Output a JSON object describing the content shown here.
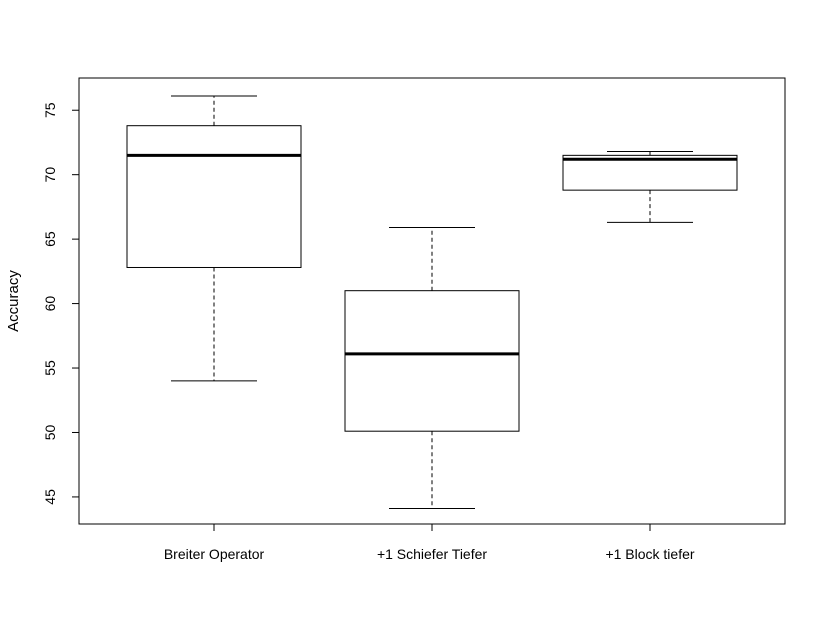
{
  "chart_data": {
    "type": "boxplot",
    "title": "",
    "xlabel": "",
    "ylabel": "Accuracy",
    "ylim": [
      42.9,
      77.5
    ],
    "yticks": [
      45,
      50,
      55,
      60,
      65,
      70,
      75
    ],
    "grid": false,
    "categories": [
      "Breiter Operator",
      "+1 Schiefer Tiefer",
      "+1 Block tiefer"
    ],
    "boxes": [
      {
        "min": 54.0,
        "q1": 62.8,
        "median": 71.5,
        "q3": 73.8,
        "max": 76.1
      },
      {
        "min": 44.1,
        "q1": 50.1,
        "median": 56.1,
        "q3": 61.0,
        "max": 65.9
      },
      {
        "min": 66.3,
        "q1": 68.8,
        "median": 71.2,
        "q3": 71.5,
        "max": 71.8
      }
    ]
  }
}
